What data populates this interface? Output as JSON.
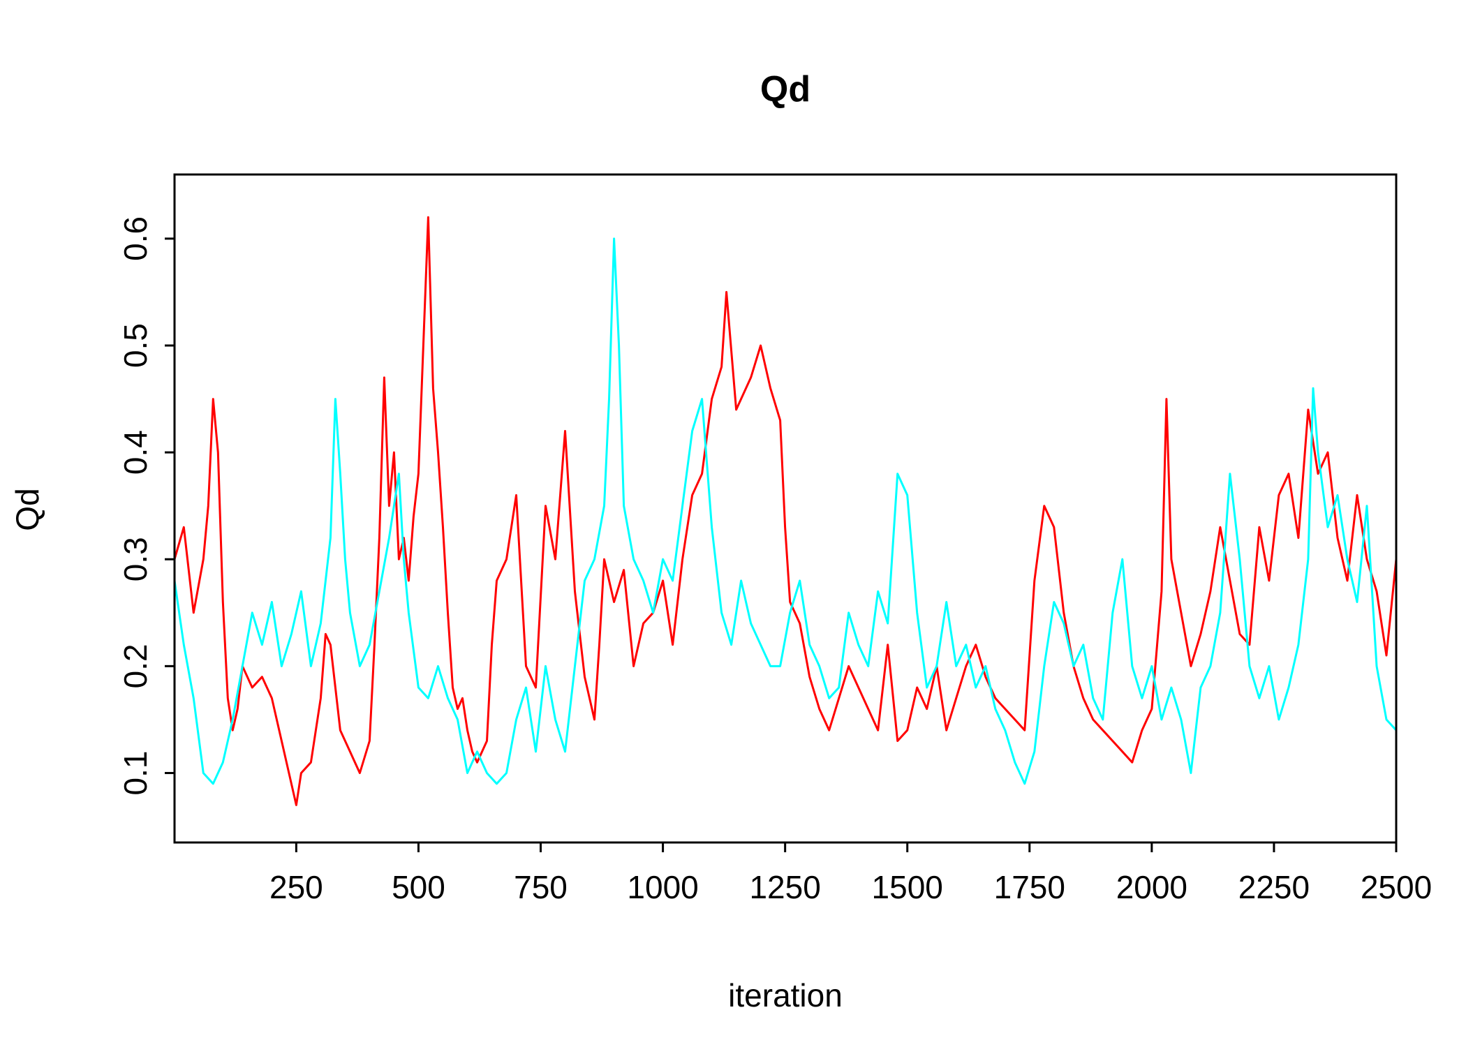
{
  "chart_data": {
    "type": "line",
    "title": "Qd",
    "xlabel": "iteration",
    "ylabel": "Qd",
    "xlim": [
      1,
      2500
    ],
    "ylim": [
      0.035,
      0.66
    ],
    "x_ticks": [
      250,
      500,
      750,
      1000,
      1250,
      1500,
      1750,
      2000,
      2250,
      2500
    ],
    "x_tick_labels": [
      "250",
      "500",
      "750",
      "1000",
      "1250",
      "1500",
      "1750",
      "2000",
      "2250",
      "2500"
    ],
    "y_ticks": [
      0.1,
      0.2,
      0.3,
      0.4,
      0.5,
      0.6
    ],
    "y_tick_labels": [
      "0.1",
      "0.2",
      "0.3",
      "0.4",
      "0.5",
      "0.6"
    ],
    "grid": false,
    "legend": "none",
    "series_colors": [
      "#ff0000",
      "#00ffff"
    ],
    "series": [
      {
        "color": "#ff0000",
        "x": [
          1,
          20,
          40,
          60,
          70,
          80,
          90,
          100,
          110,
          120,
          130,
          140,
          160,
          180,
          200,
          220,
          240,
          250,
          260,
          280,
          300,
          310,
          320,
          340,
          360,
          380,
          400,
          410,
          420,
          430,
          440,
          450,
          460,
          470,
          480,
          490,
          500,
          510,
          520,
          530,
          540,
          550,
          560,
          570,
          580,
          590,
          600,
          610,
          620,
          640,
          650,
          660,
          680,
          700,
          720,
          740,
          760,
          780,
          800,
          820,
          840,
          860,
          870,
          880,
          900,
          920,
          940,
          960,
          980,
          1000,
          1020,
          1040,
          1060,
          1080,
          1100,
          1120,
          1130,
          1150,
          1180,
          1200,
          1220,
          1240,
          1250,
          1260,
          1280,
          1300,
          1320,
          1340,
          1360,
          1380,
          1400,
          1420,
          1440,
          1460,
          1480,
          1500,
          1520,
          1540,
          1560,
          1580,
          1600,
          1620,
          1640,
          1660,
          1680,
          1700,
          1720,
          1740,
          1760,
          1780,
          1800,
          1820,
          1840,
          1860,
          1880,
          1900,
          1920,
          1940,
          1960,
          1980,
          2000,
          2020,
          2030,
          2040,
          2060,
          2080,
          2100,
          2120,
          2140,
          2160,
          2180,
          2200,
          2220,
          2240,
          2260,
          2280,
          2300,
          2320,
          2340,
          2360,
          2380,
          2400,
          2420,
          2440,
          2460,
          2480,
          2500
        ],
        "y": [
          0.3,
          0.33,
          0.25,
          0.3,
          0.35,
          0.45,
          0.4,
          0.26,
          0.17,
          0.14,
          0.16,
          0.2,
          0.18,
          0.19,
          0.17,
          0.13,
          0.09,
          0.07,
          0.1,
          0.11,
          0.17,
          0.23,
          0.22,
          0.14,
          0.12,
          0.1,
          0.13,
          0.22,
          0.32,
          0.47,
          0.35,
          0.4,
          0.3,
          0.32,
          0.28,
          0.34,
          0.38,
          0.5,
          0.62,
          0.46,
          0.4,
          0.33,
          0.25,
          0.18,
          0.16,
          0.17,
          0.14,
          0.12,
          0.11,
          0.13,
          0.22,
          0.28,
          0.3,
          0.36,
          0.2,
          0.18,
          0.35,
          0.3,
          0.42,
          0.27,
          0.19,
          0.15,
          0.22,
          0.3,
          0.26,
          0.29,
          0.2,
          0.24,
          0.25,
          0.28,
          0.22,
          0.3,
          0.36,
          0.38,
          0.45,
          0.48,
          0.55,
          0.44,
          0.47,
          0.5,
          0.46,
          0.43,
          0.33,
          0.26,
          0.24,
          0.19,
          0.16,
          0.14,
          0.17,
          0.2,
          0.18,
          0.16,
          0.14,
          0.22,
          0.13,
          0.14,
          0.18,
          0.16,
          0.2,
          0.14,
          0.17,
          0.2,
          0.22,
          0.19,
          0.17,
          0.16,
          0.15,
          0.14,
          0.28,
          0.35,
          0.33,
          0.25,
          0.2,
          0.17,
          0.15,
          0.14,
          0.13,
          0.12,
          0.11,
          0.14,
          0.16,
          0.27,
          0.45,
          0.3,
          0.25,
          0.2,
          0.23,
          0.27,
          0.33,
          0.28,
          0.23,
          0.22,
          0.33,
          0.28,
          0.36,
          0.38,
          0.32,
          0.44,
          0.38,
          0.4,
          0.32,
          0.28,
          0.36,
          0.3,
          0.27,
          0.21,
          0.3
        ],
        "values": [
          0.3,
          0.33,
          0.25,
          0.3,
          0.35,
          0.45,
          0.4,
          0.26,
          0.17,
          0.14,
          0.16,
          0.2,
          0.18,
          0.19,
          0.17,
          0.13,
          0.09,
          0.07,
          0.1,
          0.11,
          0.17,
          0.23,
          0.22,
          0.14,
          0.12,
          0.1,
          0.13,
          0.22,
          0.32,
          0.47,
          0.35,
          0.4,
          0.3,
          0.32,
          0.28,
          0.34,
          0.38,
          0.5,
          0.62,
          0.46,
          0.4,
          0.33,
          0.25,
          0.18,
          0.16,
          0.17,
          0.14,
          0.12,
          0.11,
          0.13,
          0.22,
          0.28,
          0.3,
          0.36,
          0.2,
          0.18,
          0.35,
          0.3,
          0.42,
          0.27,
          0.19,
          0.15,
          0.22,
          0.3,
          0.26,
          0.29,
          0.2,
          0.24,
          0.25,
          0.28,
          0.22,
          0.3,
          0.36,
          0.38,
          0.45,
          0.48,
          0.55,
          0.44,
          0.47,
          0.5,
          0.46,
          0.43,
          0.33,
          0.26,
          0.24,
          0.19,
          0.16,
          0.14,
          0.17,
          0.2,
          0.18,
          0.16,
          0.14,
          0.22,
          0.13,
          0.14,
          0.18,
          0.16,
          0.2,
          0.14,
          0.17,
          0.2,
          0.22,
          0.19,
          0.17,
          0.16,
          0.15,
          0.14,
          0.28,
          0.35,
          0.33,
          0.25,
          0.2,
          0.17,
          0.15,
          0.14,
          0.13,
          0.12,
          0.11,
          0.14,
          0.16,
          0.27,
          0.45,
          0.3,
          0.25,
          0.2,
          0.23,
          0.27,
          0.33,
          0.28,
          0.23,
          0.22,
          0.33,
          0.28,
          0.36,
          0.38,
          0.32,
          0.44,
          0.38,
          0.4,
          0.32,
          0.28,
          0.36,
          0.3,
          0.27,
          0.21,
          0.3
        ]
      },
      {
        "color": "#00ffff",
        "x": [
          1,
          20,
          40,
          60,
          80,
          100,
          120,
          140,
          160,
          180,
          200,
          220,
          240,
          260,
          280,
          300,
          320,
          330,
          340,
          350,
          360,
          380,
          400,
          420,
          440,
          460,
          470,
          480,
          500,
          520,
          540,
          560,
          580,
          600,
          620,
          640,
          660,
          680,
          700,
          720,
          740,
          760,
          780,
          800,
          820,
          840,
          860,
          880,
          890,
          900,
          910,
          920,
          940,
          960,
          980,
          1000,
          1020,
          1040,
          1060,
          1080,
          1100,
          1120,
          1140,
          1160,
          1180,
          1200,
          1220,
          1240,
          1260,
          1280,
          1300,
          1320,
          1340,
          1360,
          1380,
          1400,
          1420,
          1440,
          1460,
          1480,
          1500,
          1520,
          1540,
          1560,
          1580,
          1600,
          1620,
          1640,
          1660,
          1680,
          1700,
          1720,
          1740,
          1760,
          1780,
          1800,
          1820,
          1840,
          1860,
          1880,
          1900,
          1920,
          1940,
          1960,
          1980,
          2000,
          2020,
          2040,
          2060,
          2080,
          2100,
          2120,
          2140,
          2160,
          2180,
          2200,
          2220,
          2240,
          2260,
          2280,
          2300,
          2320,
          2330,
          2340,
          2360,
          2380,
          2400,
          2420,
          2440,
          2460,
          2480,
          2500
        ],
        "y": [
          0.28,
          0.22,
          0.17,
          0.1,
          0.09,
          0.11,
          0.15,
          0.2,
          0.25,
          0.22,
          0.26,
          0.2,
          0.23,
          0.27,
          0.2,
          0.24,
          0.32,
          0.45,
          0.38,
          0.3,
          0.25,
          0.2,
          0.22,
          0.27,
          0.32,
          0.38,
          0.3,
          0.25,
          0.18,
          0.17,
          0.2,
          0.17,
          0.15,
          0.1,
          0.12,
          0.1,
          0.09,
          0.1,
          0.15,
          0.18,
          0.12,
          0.2,
          0.15,
          0.12,
          0.2,
          0.28,
          0.3,
          0.35,
          0.45,
          0.6,
          0.5,
          0.35,
          0.3,
          0.28,
          0.25,
          0.3,
          0.28,
          0.35,
          0.42,
          0.45,
          0.33,
          0.25,
          0.22,
          0.28,
          0.24,
          0.22,
          0.2,
          0.2,
          0.25,
          0.28,
          0.22,
          0.2,
          0.17,
          0.18,
          0.25,
          0.22,
          0.2,
          0.27,
          0.24,
          0.38,
          0.36,
          0.25,
          0.18,
          0.2,
          0.26,
          0.2,
          0.22,
          0.18,
          0.2,
          0.16,
          0.14,
          0.11,
          0.09,
          0.12,
          0.2,
          0.26,
          0.24,
          0.2,
          0.22,
          0.17,
          0.15,
          0.25,
          0.3,
          0.2,
          0.17,
          0.2,
          0.15,
          0.18,
          0.15,
          0.1,
          0.18,
          0.2,
          0.25,
          0.38,
          0.3,
          0.2,
          0.17,
          0.2,
          0.15,
          0.18,
          0.22,
          0.3,
          0.46,
          0.4,
          0.33,
          0.36,
          0.3,
          0.26,
          0.35,
          0.2,
          0.15,
          0.14
        ]
      }
    ]
  }
}
